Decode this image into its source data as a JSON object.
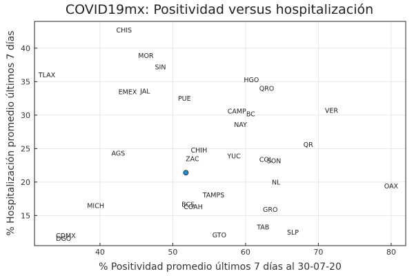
{
  "chart_data": {
    "type": "scatter",
    "title": "COVID19mx: Positividad versus hospitalización",
    "xlabel": "% Positividad promedio últimos 7 días al 30-07-20",
    "ylabel": "% Hospitalización promedio últimos 7 días",
    "xlim": [
      31,
      82
    ],
    "ylim": [
      10.5,
      44
    ],
    "xticks": [
      40,
      50,
      60,
      70,
      80
    ],
    "yticks": [
      15,
      20,
      25,
      30,
      35,
      40
    ],
    "grid": true,
    "legend": "none",
    "marker": {
      "x": 51.8,
      "y": 21.4,
      "color": "#1f8fd6"
    },
    "labels": [
      {
        "text": "CHIS",
        "x": 43.3,
        "y": 42.7
      },
      {
        "text": "MOR",
        "x": 46.3,
        "y": 38.9
      },
      {
        "text": "SIN",
        "x": 48.3,
        "y": 37.2
      },
      {
        "text": "TLAX",
        "x": 32.7,
        "y": 36.0
      },
      {
        "text": "EMEX",
        "x": 43.8,
        "y": 33.5
      },
      {
        "text": "JAL",
        "x": 46.2,
        "y": 33.6
      },
      {
        "text": "PUE",
        "x": 51.6,
        "y": 32.5
      },
      {
        "text": "HGO",
        "x": 60.8,
        "y": 35.3
      },
      {
        "text": "QRO",
        "x": 62.9,
        "y": 34.0
      },
      {
        "text": "CAMP",
        "x": 58.8,
        "y": 30.6
      },
      {
        "text": "BC",
        "x": 60.7,
        "y": 30.2
      },
      {
        "text": "VER",
        "x": 71.8,
        "y": 30.7
      },
      {
        "text": "NAY",
        "x": 59.3,
        "y": 28.6
      },
      {
        "text": "QR",
        "x": 68.6,
        "y": 25.6
      },
      {
        "text": "CHIH",
        "x": 53.6,
        "y": 24.8
      },
      {
        "text": "AGS",
        "x": 42.5,
        "y": 24.3
      },
      {
        "text": "YUC",
        "x": 58.4,
        "y": 23.9
      },
      {
        "text": "ZAC",
        "x": 52.7,
        "y": 23.5
      },
      {
        "text": "COL",
        "x": 62.8,
        "y": 23.4
      },
      {
        "text": "SON",
        "x": 63.9,
        "y": 23.2
      },
      {
        "text": "NL",
        "x": 64.2,
        "y": 20.0
      },
      {
        "text": "OAX",
        "x": 80.0,
        "y": 19.4
      },
      {
        "text": "TAMPS",
        "x": 55.6,
        "y": 18.1
      },
      {
        "text": "MICH",
        "x": 39.4,
        "y": 16.5
      },
      {
        "text": "BCS",
        "x": 52.1,
        "y": 16.7
      },
      {
        "text": "COAH",
        "x": 52.8,
        "y": 16.3
      },
      {
        "text": "GRO",
        "x": 63.4,
        "y": 15.9
      },
      {
        "text": "TAB",
        "x": 62.4,
        "y": 13.3
      },
      {
        "text": "SLP",
        "x": 66.5,
        "y": 12.5
      },
      {
        "text": "GTO",
        "x": 56.4,
        "y": 12.1
      },
      {
        "text": "CDMX",
        "x": 35.3,
        "y": 12.0
      },
      {
        "text": "DGO",
        "x": 35.0,
        "y": 11.6
      }
    ]
  }
}
